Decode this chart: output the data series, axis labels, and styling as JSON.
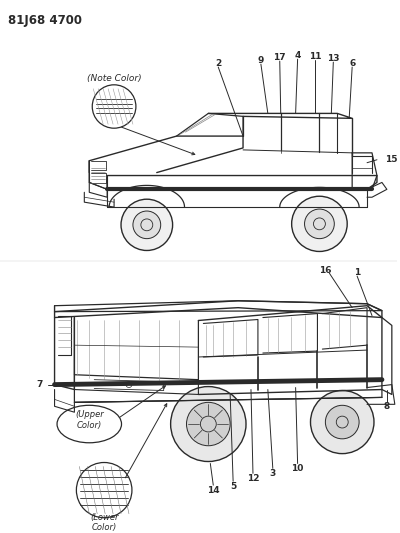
{
  "title": "81J68 4700",
  "bg_color": "#ffffff",
  "line_color": "#2a2a2a",
  "note_color_label": "(Note Color)",
  "upper_color_label": "(Upper\nColor)",
  "lower_color_label": "(Lower\nColor)"
}
